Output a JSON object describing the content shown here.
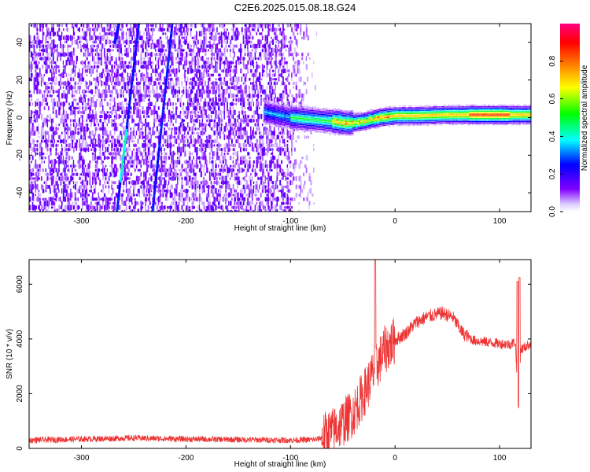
{
  "title": "C2E6.2025.015.08.18.G24",
  "chart_data": [
    {
      "type": "heatmap",
      "xlabel": "Height of straight line (km)",
      "ylabel": "Frequency (Hz)",
      "xlim": [
        -350,
        130
      ],
      "ylim": [
        -50,
        50
      ],
      "xticks": [
        -300,
        -200,
        -100,
        0,
        100
      ],
      "yticks": [
        -40,
        -20,
        0,
        20,
        40
      ],
      "colorbar": {
        "label": "Normalized spectral amplitude",
        "range": [
          0,
          1
        ],
        "ticks": [
          0.0,
          0.2,
          0.4,
          0.6,
          0.8
        ],
        "colormap": [
          "#ffffff",
          "#7f00ff",
          "#0000ff",
          "#00ffff",
          "#00ff00",
          "#ffff00",
          "#ff8000",
          "#ff0000",
          "#ff0080"
        ]
      },
      "features": {
        "noise_region_x": [
          -350,
          -75
        ],
        "signal_track": [
          {
            "x": -125,
            "y": 3
          },
          {
            "x": -100,
            "y": 0
          },
          {
            "x": -80,
            "y": -1
          },
          {
            "x": -60,
            "y": -2
          },
          {
            "x": -45,
            "y": -3
          },
          {
            "x": -30,
            "y": -2
          },
          {
            "x": -15,
            "y": 0
          },
          {
            "x": 0,
            "y": 1
          },
          {
            "x": 20,
            "y": 1
          },
          {
            "x": 50,
            "y": 1.5
          },
          {
            "x": 80,
            "y": 1.5
          },
          {
            "x": 100,
            "y": 1.5
          },
          {
            "x": 130,
            "y": 1.5
          }
        ],
        "diagonal_streaks": [
          {
            "from": [
              -266,
              -50
            ],
            "to": [
              -245,
              50
            ]
          },
          {
            "from": [
              -232,
              -50
            ],
            "to": [
              -213,
              50
            ]
          },
          {
            "from": [
              -268,
              40
            ],
            "to": [
              -264,
              50
            ]
          }
        ]
      }
    },
    {
      "type": "line",
      "xlabel": "Height of straight line (km)",
      "ylabel": "SNR (10 * v/v)",
      "xlim": [
        -350,
        130
      ],
      "ylim": [
        0,
        6900
      ],
      "xticks": [
        -300,
        -200,
        -100,
        0,
        100
      ],
      "yticks": [
        0,
        2000,
        4000,
        6000
      ],
      "color": "#ee3333",
      "envelope": [
        {
          "x": -350,
          "y": 300
        },
        {
          "x": -250,
          "y": 380
        },
        {
          "x": -200,
          "y": 340
        },
        {
          "x": -100,
          "y": 300
        },
        {
          "x": -75,
          "y": 320
        },
        {
          "x": -60,
          "y": 600
        },
        {
          "x": -40,
          "y": 1300
        },
        {
          "x": -30,
          "y": 2000
        },
        {
          "x": -20,
          "y": 2800
        },
        {
          "x": -10,
          "y": 3600
        },
        {
          "x": 0,
          "y": 3950
        },
        {
          "x": 10,
          "y": 4200
        },
        {
          "x": 20,
          "y": 4600
        },
        {
          "x": 30,
          "y": 4800
        },
        {
          "x": 45,
          "y": 4950
        },
        {
          "x": 55,
          "y": 4800
        },
        {
          "x": 65,
          "y": 4200
        },
        {
          "x": 75,
          "y": 3950
        },
        {
          "x": 95,
          "y": 3850
        },
        {
          "x": 110,
          "y": 3800
        },
        {
          "x": 115,
          "y": 3900
        },
        {
          "x": 118,
          "y": 1300
        },
        {
          "x": 120,
          "y": 3600
        },
        {
          "x": 130,
          "y": 3850
        }
      ],
      "spikes": [
        {
          "x": -19,
          "y": 6900
        },
        {
          "x": 117,
          "y": 6100
        },
        {
          "x": 119,
          "y": 6250
        }
      ]
    }
  ]
}
